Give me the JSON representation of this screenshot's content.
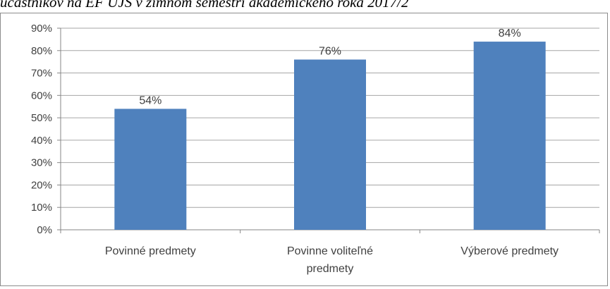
{
  "caption": "účastníkov na EF UJS v zimnom semestri akademického roka 2017/2",
  "chart_data": {
    "type": "bar",
    "categories": [
      [
        "Povinné predmety"
      ],
      [
        "Povinne voliteľné",
        "predmety"
      ],
      [
        "Výberové predmety"
      ]
    ],
    "values": [
      54,
      76,
      84
    ],
    "value_labels": [
      "54%",
      "76%",
      "84%"
    ],
    "ytick_labels": [
      "0%",
      "10%",
      "20%",
      "30%",
      "40%",
      "50%",
      "60%",
      "70%",
      "80%",
      "90%"
    ],
    "ylim": [
      0,
      90
    ],
    "grid": true,
    "legend": "none",
    "bar_color": "#4f81bd"
  }
}
